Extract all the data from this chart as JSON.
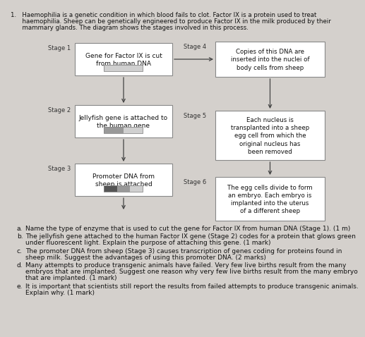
{
  "bg_color": "#d4d0cc",
  "box_bg": "#ffffff",
  "box_border": "#888888",
  "arrow_color": "#444444",
  "stage1_label": "Stage 1",
  "stage1_box": "Gene for Factor IX is cut\nfrom human DNA",
  "stage2_label": "Stage 2",
  "stage2_box": "Jellyfish gene is attached to\nthe human gene",
  "stage3_label": "Stage 3",
  "stage3_box": "Promoter DNA from\nsheep is attached",
  "stage4_label": "Stage 4",
  "stage4_box": "Copies of this DNA are\ninserted into the nuclei of\nbody cells from sheep",
  "stage5_label": "Stage 5",
  "stage5_box": "Each nucleus is\ntransplanted into a sheep\negg cell from which the\noriginal nucleus has\nbeen removed",
  "stage6_label": "Stage 6",
  "stage6_box": "The egg cells divide to form\nan embryo. Each embryo is\nimplanted into the uterus\nof a different sheep",
  "title_line1": "1.   Haemophilia is a genetic condition in which blood fails to clot. Factor IX is a protein used to treat",
  "title_line2": "      haemophilia. Sheep can be genetically engineered to produce Factor IX in the milk produced by their",
  "title_line3": "      mammary glands. The diagram shows the stages involved in this process.",
  "qa_a_letter": "a.",
  "qa_a": "Name the type of enzyme that is used to cut the gene for Factor IX from human DNA (Stage 1). (1 m)",
  "qa_b_letter": "b.",
  "qa_b1": "The jellyfish gene attached to the human Factor IX gene (Stage 2) codes for a protein that glows green",
  "qa_b2": "under fluorescent light. Explain the purpose of attaching this gene. (1 mark)",
  "qa_c_letter": "c.",
  "qa_c1": "The promoter DNA from sheep (Stage 3) causes transcription of genes coding for proteins found in",
  "qa_c2": "sheep milk. Suggest the advantages of using this promoter DNA. (2 marks)",
  "qa_d_letter": "d.",
  "qa_d1": "Many attempts to produce transgenic animals have failed. Very few live births result from the many",
  "qa_d2": "embryos that are implanted. Suggest one reason why very few live births result from the many embryo",
  "qa_d3": "that are implanted. (1 mark)",
  "qa_e_letter": "e.",
  "qa_e1": "It is important that scientists still report the results from failed attempts to produce transgenic animals.",
  "qa_e2": "Explain why. (1 mark)",
  "dna1_colors": [
    "#d0d0d0"
  ],
  "dna2_colors": [
    "#999999",
    "#d0d0d0"
  ],
  "dna3_colors": [
    "#555555",
    "#999999",
    "#d0d0d0"
  ]
}
